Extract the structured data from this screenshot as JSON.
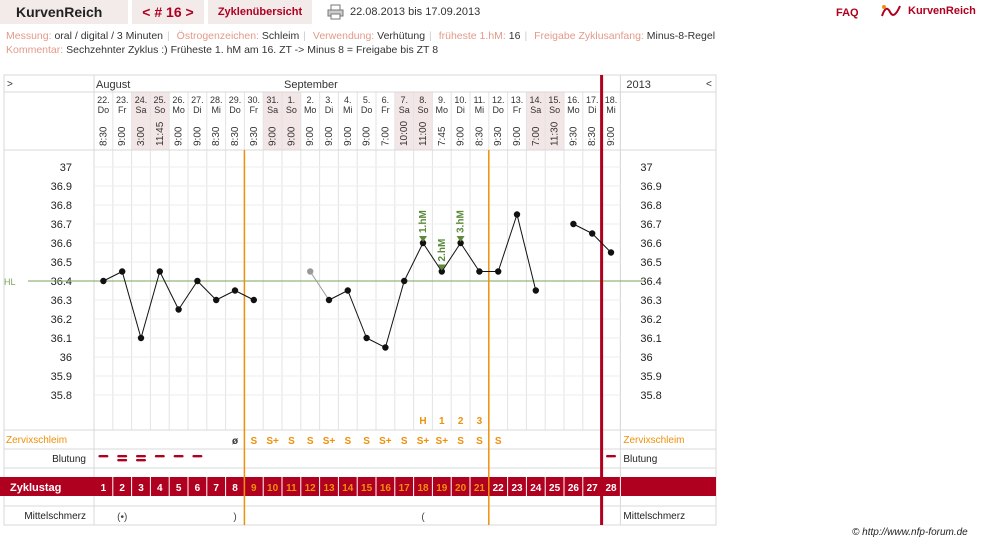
{
  "header": {
    "app_title": "KurvenReich",
    "cycle_label": "< # 16 >",
    "overview_label": "Zyklenübersicht",
    "date_range": "22.08.2013 bis 17.09.2013",
    "faq_label": "FAQ",
    "logo_text": "KurvenReich"
  },
  "meta": {
    "messung_k": "Messung:",
    "messung_v": "oral / digital / 3 Minuten",
    "oestrogen_k": "Östrogenzeichen:",
    "oestrogen_v": "Schleim",
    "verwendung_k": "Verwendung:",
    "verwendung_v": "Verhütung",
    "fhm_k": "früheste 1.hM:",
    "fhm_v": "16",
    "freigabe_k": "Freigabe Zyklusanfang:",
    "freigabe_v": "Minus-8-Regel",
    "kommentar_k": "Kommentar:",
    "kommentar_v": "Sechzehnter Zyklus :)  Früheste 1. hM am 16. ZT -> Minus 8 = Freigabe bis ZT 8"
  },
  "chart_data": {
    "type": "line",
    "title": "",
    "year": "2013",
    "nav_left": ">",
    "nav_right": "<",
    "months": [
      {
        "label": "August",
        "start_index": 0
      },
      {
        "label": "September",
        "start_index": 10
      }
    ],
    "days": [
      {
        "date": "22.",
        "wd": "Do",
        "time": "8:30",
        "cd": "1",
        "temp": 36.4
      },
      {
        "date": "23.",
        "wd": "Fr",
        "time": "9:00",
        "cd": "2",
        "temp": 36.45
      },
      {
        "date": "24.",
        "wd": "Sa",
        "time": "3:00",
        "cd": "3",
        "temp": 36.1
      },
      {
        "date": "25.",
        "wd": "So",
        "time": "11:45",
        "cd": "4",
        "temp": 36.45
      },
      {
        "date": "26.",
        "wd": "Mo",
        "time": "9:00",
        "cd": "5",
        "temp": 36.25
      },
      {
        "date": "27.",
        "wd": "Di",
        "time": "9:00",
        "cd": "6",
        "temp": 36.4
      },
      {
        "date": "28.",
        "wd": "Mi",
        "time": "8:30",
        "cd": "7",
        "temp": 36.3
      },
      {
        "date": "29.",
        "wd": "Do",
        "time": "8:30",
        "cd": "8",
        "temp": 36.35
      },
      {
        "date": "30.",
        "wd": "Fr",
        "time": "9:30",
        "cd": "9",
        "temp": 36.3
      },
      {
        "date": "31.",
        "wd": "Sa",
        "time": "9:00",
        "cd": "10",
        "temp": null
      },
      {
        "date": "1.",
        "wd": "So",
        "time": "9:00",
        "cd": "11",
        "temp": null
      },
      {
        "date": "2.",
        "wd": "Mo",
        "time": "9:00",
        "cd": "12",
        "temp": 36.45,
        "excluded": true
      },
      {
        "date": "3.",
        "wd": "Di",
        "time": "9:00",
        "cd": "13",
        "temp": 36.3
      },
      {
        "date": "4.",
        "wd": "Mi",
        "time": "9:00",
        "cd": "14",
        "temp": 36.35
      },
      {
        "date": "5.",
        "wd": "Do",
        "time": "9:00",
        "cd": "15",
        "temp": 36.1
      },
      {
        "date": "6.",
        "wd": "Fr",
        "time": "7:00",
        "cd": "16",
        "temp": 36.05
      },
      {
        "date": "7.",
        "wd": "Sa",
        "time": "10:00",
        "cd": "17",
        "temp": 36.4
      },
      {
        "date": "8.",
        "wd": "So",
        "time": "11:00",
        "cd": "18",
        "temp": 36.6,
        "hm": "1.hM"
      },
      {
        "date": "9.",
        "wd": "Mo",
        "time": "7:45",
        "cd": "19",
        "temp": 36.45,
        "hm": "2.hM"
      },
      {
        "date": "10.",
        "wd": "Di",
        "time": "9:00",
        "cd": "20",
        "temp": 36.6,
        "hm": "3.hM"
      },
      {
        "date": "11.",
        "wd": "Mi",
        "time": "8:30",
        "cd": "21",
        "temp": 36.45
      },
      {
        "date": "12.",
        "wd": "Do",
        "time": "9:30",
        "cd": "22",
        "temp": 36.45
      },
      {
        "date": "13.",
        "wd": "Fr",
        "time": "9:00",
        "cd": "23",
        "temp": 36.75
      },
      {
        "date": "14.",
        "wd": "Sa",
        "time": "7:00",
        "cd": "24",
        "temp": 36.35
      },
      {
        "date": "15.",
        "wd": "So",
        "time": "11:30",
        "cd": "25",
        "temp": null
      },
      {
        "date": "16.",
        "wd": "Mo",
        "time": "9:30",
        "cd": "26",
        "temp": 36.7
      },
      {
        "date": "17.",
        "wd": "Di",
        "time": "8:30",
        "cd": "27",
        "temp": 36.65
      },
      {
        "date": "18.",
        "wd": "Mi",
        "time": "9:00",
        "cd": "28",
        "temp": 36.55
      }
    ],
    "weekend_indices": [
      2,
      3,
      9,
      10,
      16,
      17,
      23,
      24
    ],
    "y_ticks": [
      "37",
      "36.9",
      "36.8",
      "36.7",
      "36.6",
      "36.5",
      "36.4",
      "36.3",
      "36.2",
      "36.1",
      "36",
      "35.9",
      "35.8"
    ],
    "ylim": [
      35.7,
      37.1
    ],
    "hl_label": "HL",
    "hl_value": 36.4,
    "orange_line_indices": [
      7.5,
      20.5
    ],
    "red_line_index": 26.5,
    "row_labels": {
      "cervix": "Zervixschleim",
      "bleeding": "Blutung",
      "cycle_day": "Zyklustag",
      "mittelschmerz": "Mittelschmerz"
    },
    "peak_labels": [
      {
        "index": 17,
        "text": "H"
      },
      {
        "index": 18,
        "text": "1"
      },
      {
        "index": 19,
        "text": "2"
      },
      {
        "index": 20,
        "text": "3"
      }
    ],
    "cervix": [
      "",
      "",
      "",
      "",
      "",
      "",
      "",
      "ø",
      "S",
      "S+",
      "S",
      "S",
      "S+",
      "S",
      "S",
      "S+",
      "S",
      "S+",
      "S+",
      "S",
      "S",
      "S",
      "",
      "",
      "",
      "",
      "",
      ""
    ],
    "bleeding": [
      1,
      2,
      2,
      1,
      1,
      1,
      0,
      0,
      0,
      0,
      0,
      0,
      0,
      0,
      0,
      0,
      0,
      0,
      0,
      0,
      0,
      0,
      0,
      0,
      0,
      0,
      0,
      1
    ],
    "mittelschmerz": [
      {
        "index": 1,
        "text": "(•)"
      },
      {
        "index": 7,
        "text": ")"
      },
      {
        "index": 17,
        "text": "("
      }
    ],
    "colors": {
      "accent_red": "#b00020",
      "orange": "#f0900a",
      "hl_green": "#7aa55a",
      "hm_green": "#5a8a3a",
      "weekend_bg": "#f3e6e6",
      "grid": "#e3e3e3"
    }
  },
  "footer": {
    "copyright": "© http://www.nfp-forum.de"
  }
}
